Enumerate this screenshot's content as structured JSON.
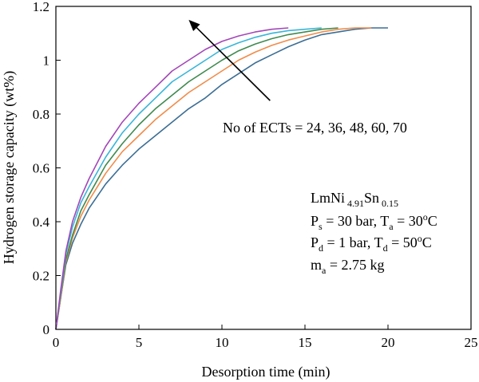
{
  "chart_data": {
    "type": "line",
    "xlabel": "Desorption time (min)",
    "ylabel": "Hydrogen storage capacity (wt%)",
    "xlim": [
      0,
      25
    ],
    "ylim": [
      0,
      1.2
    ],
    "x_ticks": [
      "0",
      "5",
      "10",
      "15",
      "20",
      "25"
    ],
    "y_ticks": [
      "0",
      "0.2",
      "0.4",
      "0.6",
      "0.8",
      "1",
      "1.2"
    ],
    "grid": false,
    "series": [
      {
        "color": "#3b6e95",
        "points": [
          [
            0,
            0
          ],
          [
            0.3,
            0.12
          ],
          [
            0.6,
            0.24
          ],
          [
            1,
            0.32
          ],
          [
            1.5,
            0.39
          ],
          [
            2,
            0.45
          ],
          [
            3,
            0.54
          ],
          [
            4,
            0.61
          ],
          [
            5,
            0.67
          ],
          [
            6,
            0.72
          ],
          [
            7,
            0.77
          ],
          [
            8,
            0.82
          ],
          [
            9,
            0.86
          ],
          [
            10,
            0.91
          ],
          [
            11,
            0.95
          ],
          [
            12,
            0.99
          ],
          [
            13,
            1.02
          ],
          [
            14,
            1.05
          ],
          [
            15,
            1.075
          ],
          [
            16,
            1.095
          ],
          [
            17,
            1.105
          ],
          [
            18,
            1.115
          ],
          [
            19,
            1.12
          ],
          [
            20,
            1.12
          ]
        ]
      },
      {
        "color": "#f08c4a",
        "points": [
          [
            0,
            0
          ],
          [
            0.3,
            0.12
          ],
          [
            0.6,
            0.25
          ],
          [
            1,
            0.34
          ],
          [
            1.5,
            0.42
          ],
          [
            2,
            0.48
          ],
          [
            3,
            0.58
          ],
          [
            4,
            0.66
          ],
          [
            5,
            0.72
          ],
          [
            6,
            0.78
          ],
          [
            7,
            0.83
          ],
          [
            8,
            0.88
          ],
          [
            9,
            0.92
          ],
          [
            10,
            0.96
          ],
          [
            11,
            1.0
          ],
          [
            12,
            1.03
          ],
          [
            13,
            1.055
          ],
          [
            14,
            1.075
          ],
          [
            15,
            1.09
          ],
          [
            16,
            1.105
          ],
          [
            17,
            1.115
          ],
          [
            18,
            1.12
          ],
          [
            19,
            1.12
          ]
        ]
      },
      {
        "color": "#3f8a4e",
        "points": [
          [
            0,
            0
          ],
          [
            0.3,
            0.13
          ],
          [
            0.6,
            0.26
          ],
          [
            1,
            0.35
          ],
          [
            1.5,
            0.44
          ],
          [
            2,
            0.5
          ],
          [
            3,
            0.61
          ],
          [
            4,
            0.69
          ],
          [
            5,
            0.76
          ],
          [
            6,
            0.82
          ],
          [
            7,
            0.87
          ],
          [
            8,
            0.92
          ],
          [
            9,
            0.96
          ],
          [
            10,
            1.0
          ],
          [
            11,
            1.035
          ],
          [
            12,
            1.06
          ],
          [
            13,
            1.08
          ],
          [
            14,
            1.095
          ],
          [
            15,
            1.105
          ],
          [
            16,
            1.115
          ],
          [
            17,
            1.12
          ]
        ]
      },
      {
        "color": "#39b5d8",
        "points": [
          [
            0,
            0
          ],
          [
            0.3,
            0.14
          ],
          [
            0.6,
            0.28
          ],
          [
            1,
            0.38
          ],
          [
            1.5,
            0.47
          ],
          [
            2,
            0.53
          ],
          [
            3,
            0.64
          ],
          [
            4,
            0.73
          ],
          [
            5,
            0.8
          ],
          [
            6,
            0.86
          ],
          [
            7,
            0.92
          ],
          [
            8,
            0.96
          ],
          [
            9,
            1.0
          ],
          [
            10,
            1.04
          ],
          [
            11,
            1.065
          ],
          [
            12,
            1.085
          ],
          [
            13,
            1.1
          ],
          [
            14,
            1.11
          ],
          [
            15,
            1.115
          ],
          [
            16,
            1.12
          ]
        ]
      },
      {
        "color": "#a347b8",
        "points": [
          [
            0,
            0
          ],
          [
            0.3,
            0.15
          ],
          [
            0.6,
            0.29
          ],
          [
            1,
            0.4
          ],
          [
            1.5,
            0.49
          ],
          [
            2,
            0.56
          ],
          [
            3,
            0.68
          ],
          [
            4,
            0.77
          ],
          [
            5,
            0.84
          ],
          [
            6,
            0.9
          ],
          [
            7,
            0.96
          ],
          [
            8,
            1.0
          ],
          [
            9,
            1.04
          ],
          [
            10,
            1.07
          ],
          [
            11,
            1.09
          ],
          [
            12,
            1.105
          ],
          [
            13,
            1.115
          ],
          [
            14,
            1.12
          ]
        ]
      }
    ],
    "annotations": {
      "ects_label": "No of ECTs = 24, 36, 48, 60, 70",
      "alloy": {
        "base": "LmNi",
        "sub1": "4.91",
        "mid": "Sn",
        "sub2": "0.15"
      },
      "ps_line": {
        "p": "P",
        "p_sub": "s",
        "mid": " = 30 bar, T",
        "t_sub": "a",
        "val": " = 30",
        "sup": "o",
        "unit": "C"
      },
      "pd_line": {
        "p": "P",
        "p_sub": "d",
        "mid": " = 1 bar, T",
        "t_sub": "d",
        "val": " = 50",
        "sup": "o",
        "unit": "C"
      },
      "ma_line": {
        "m": "m",
        "m_sub": "a",
        "val": " = 2.75 kg"
      },
      "arrow": {
        "from": [
          12.9,
          0.85
        ],
        "to": [
          8.0,
          1.15
        ]
      }
    }
  }
}
